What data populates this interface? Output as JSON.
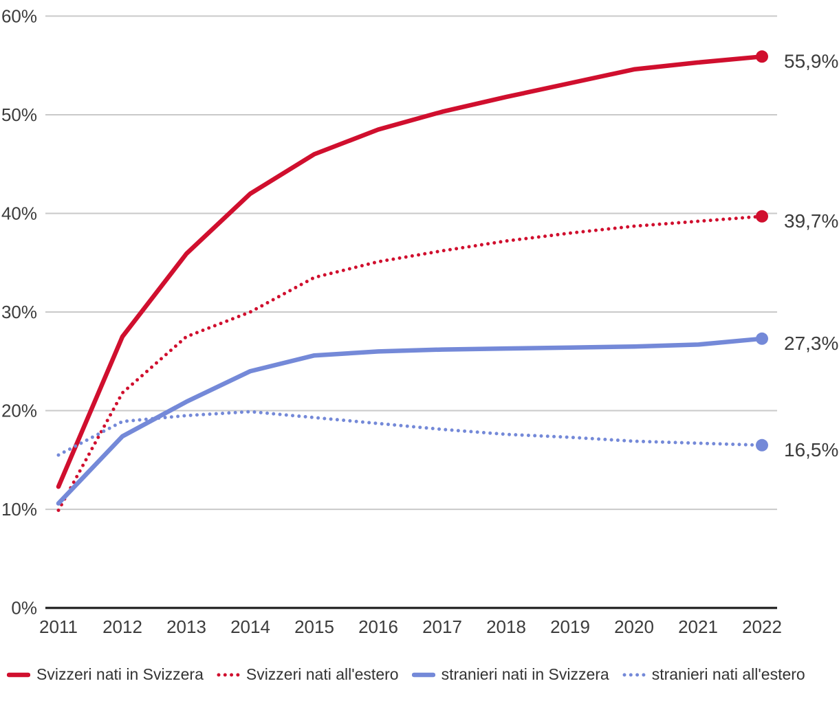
{
  "chart_data": {
    "type": "line",
    "x": [
      2011,
      2012,
      2013,
      2014,
      2015,
      2016,
      2017,
      2018,
      2019,
      2020,
      2021,
      2022
    ],
    "series": [
      {
        "name": "Svizzeri nati in Svizzera",
        "color_key": "red",
        "line_style": "solid",
        "values": [
          12.3,
          27.5,
          35.9,
          42.0,
          46.0,
          48.5,
          50.3,
          51.8,
          53.2,
          54.6,
          55.3,
          55.9
        ],
        "end_label": "55,9%"
      },
      {
        "name": "Svizzeri nati all'estero",
        "color_key": "red",
        "line_style": "dotted",
        "values": [
          9.9,
          21.8,
          27.5,
          30.0,
          33.5,
          35.1,
          36.2,
          37.2,
          38.0,
          38.7,
          39.2,
          39.7
        ],
        "end_label": "39,7%"
      },
      {
        "name": "stranieri nati in Svizzera",
        "color_key": "blue",
        "line_style": "solid",
        "values": [
          10.6,
          17.4,
          20.9,
          24.0,
          25.6,
          26.0,
          26.2,
          26.3,
          26.4,
          26.5,
          26.7,
          27.3
        ],
        "end_label": "27,3%"
      },
      {
        "name": "stranieri nati all'estero",
        "color_key": "blue",
        "line_style": "dotted",
        "values": [
          15.5,
          18.9,
          19.5,
          19.9,
          19.3,
          18.7,
          18.1,
          17.6,
          17.3,
          16.9,
          16.7,
          16.5
        ],
        "end_label": "16,5%"
      }
    ],
    "yticks": [
      0,
      10,
      20,
      30,
      40,
      50,
      60
    ],
    "ytick_labels": [
      "0%",
      "10%",
      "20%",
      "30%",
      "40%",
      "50%",
      "60%"
    ],
    "xtick_labels": [
      "2011",
      "2012",
      "2013",
      "2014",
      "2015",
      "2016",
      "2017",
      "2018",
      "2019",
      "2020",
      "2021",
      "2022"
    ],
    "ylim": [
      0,
      60
    ],
    "grid": "horizontal",
    "legend_position": "bottom",
    "end_markers": true
  },
  "colors": {
    "red": "#d00f2e",
    "blue": "#7489d8",
    "grid": "#c9c9c9",
    "axis": "#2b2b2b",
    "text": "#3c3c3c"
  }
}
